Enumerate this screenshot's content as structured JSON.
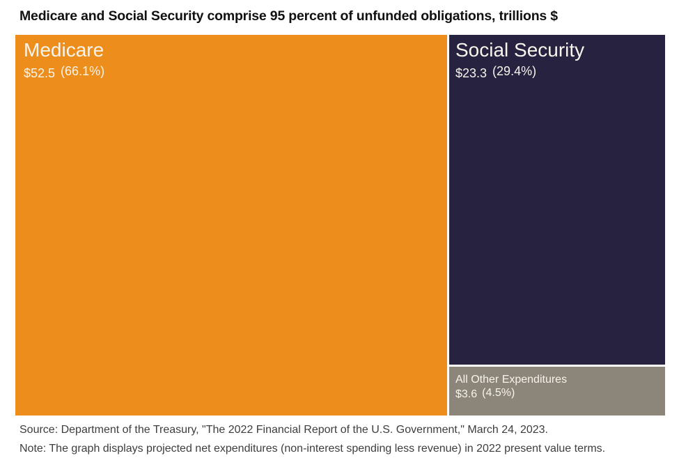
{
  "page": {
    "title": "Medicare and Social Security comprise 95 percent of unfunded obligations, trillions $"
  },
  "chart_data": {
    "type": "pie",
    "variant": "treemap",
    "title": "Medicare and Social Security comprise 95 percent of unfunded obligations, trillions $",
    "units": "trillions $",
    "categories": [
      "Medicare",
      "Social Security",
      "All Other Expenditures"
    ],
    "values": [
      52.5,
      23.3,
      3.6
    ],
    "percentages": [
      66.1,
      29.4,
      4.5
    ],
    "colors": [
      "#ED8E1C",
      "#272240",
      "#8C857A"
    ],
    "label_color": "#F7F4EC",
    "layout": "Medicare fills left column full height; Social Security occupies top of right column; All Other Expenditures is a short strip at bottom right",
    "source": "Source: Department of the Treasury, \"The 2022 Financial Report of the U.S. Government,\" March 24, 2023.",
    "note": "Note: The graph displays projected net expenditures (non-interest spending less revenue) in 2022 present value terms."
  },
  "blocks": {
    "medicare": {
      "label": "Medicare",
      "value": "$52.5",
      "pct": "(66.1%)",
      "color": "#ED8E1C"
    },
    "social_security": {
      "label": "Social Security",
      "value": "$23.3",
      "pct": "(29.4%)",
      "color": "#272240"
    },
    "all_other": {
      "label": "All Other Expenditures",
      "value": "$3.6",
      "pct": "(4.5%)",
      "color": "#8C857A"
    }
  },
  "footer": {
    "source": "Source: Department of the Treasury, \"The 2022 Financial Report of the U.S. Government,\" March 24, 2023.",
    "note": "Note: The graph displays projected net expenditures (non-interest spending less revenue) in 2022 present value terms."
  }
}
